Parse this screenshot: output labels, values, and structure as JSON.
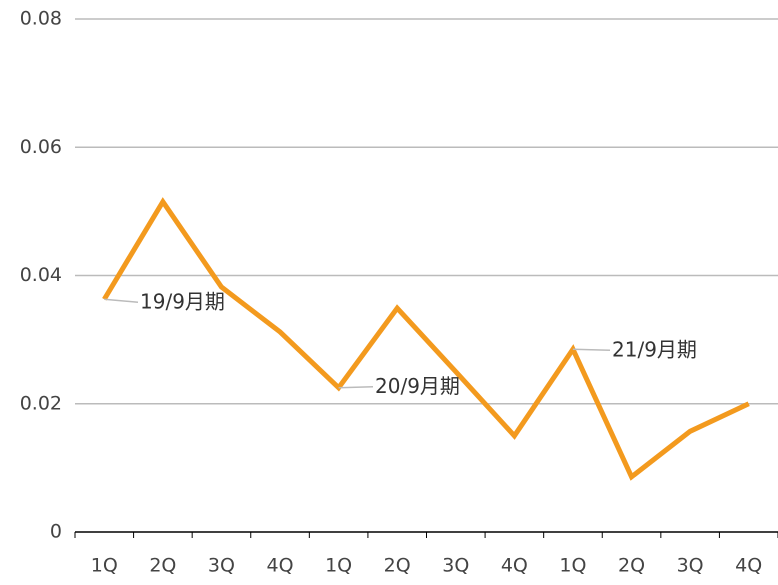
{
  "chart_data": {
    "type": "line",
    "categories": [
      "1Q",
      "2Q",
      "3Q",
      "4Q",
      "1Q",
      "2Q",
      "3Q",
      "4Q",
      "1Q",
      "2Q",
      "3Q",
      "4Q"
    ],
    "series": [
      {
        "name": "",
        "color": "#f39a1e",
        "values": [
          0.0363,
          0.0515,
          0.0382,
          0.0312,
          0.0225,
          0.0349,
          0.025,
          0.015,
          0.0285,
          0.0086,
          0.0157,
          0.02
        ]
      }
    ],
    "annotations": [
      "19/9月期",
      "20/9月期",
      "21/9月期"
    ],
    "ylim": [
      0,
      0.08
    ],
    "yticks": [
      0,
      0.02,
      0.04,
      0.06,
      0.08
    ],
    "grid": true
  }
}
